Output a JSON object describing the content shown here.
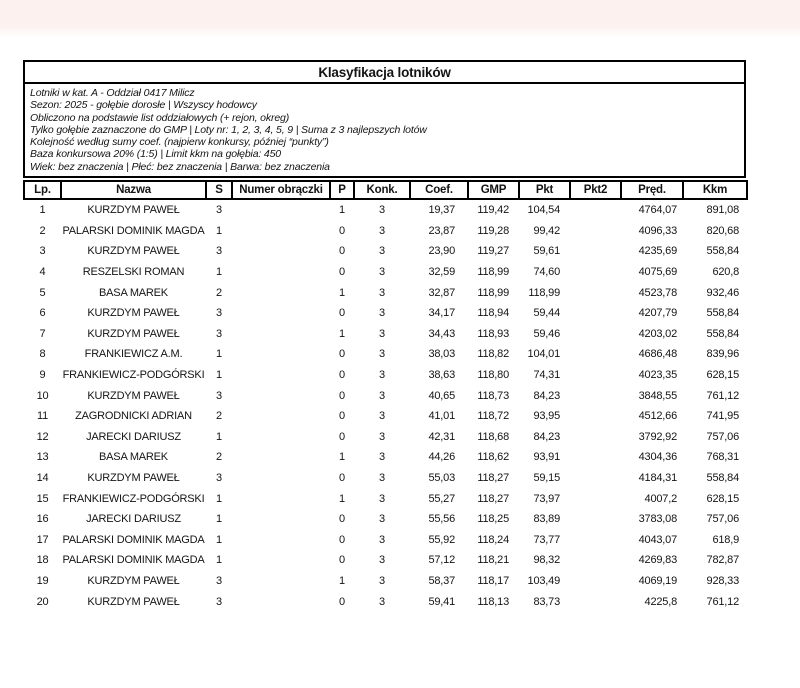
{
  "page": {
    "top_band_color": "#fcf1ee",
    "background_color": "#ffffff",
    "border_color": "#000000"
  },
  "document": {
    "title": "Klasyfikacja lotników",
    "info_lines": [
      "Lotniki w kat. A - Oddział 0417 Milicz",
      "Sezon: 2025 - gołębie dorosłe  |  Wszyscy hodowcy",
      "Obliczono na podstawie list oddziałowych (+ rejon, okreg)",
      "Tylko gołębie zaznaczone do GMP  |  Loty nr: 1, 2, 3, 4, 5, 9  |  Suma z 3 najlepszych lotów",
      "Kolejność według sumy coef. (najpierw konkursy, później “punkty”)",
      "Baza konkursowa 20% (1:5) | Limit kkm na gołębia: 450",
      "Wiek: bez znaczenia  |  Płeć: bez znaczenia  |  Barwa: bez znaczenia"
    ],
    "table": {
      "columns": [
        {
          "key": "lp",
          "label": "Lp."
        },
        {
          "key": "nazwa",
          "label": "Nazwa"
        },
        {
          "key": "s",
          "label": "S"
        },
        {
          "key": "ring",
          "label": "Numer obrączki"
        },
        {
          "key": "p",
          "label": "P"
        },
        {
          "key": "konk",
          "label": "Konk."
        },
        {
          "key": "coef",
          "label": "Coef."
        },
        {
          "key": "gmp",
          "label": "GMP"
        },
        {
          "key": "pkt",
          "label": "Pkt"
        },
        {
          "key": "pkt2",
          "label": "Pkt2"
        },
        {
          "key": "pred",
          "label": "Pręd."
        },
        {
          "key": "kkm",
          "label": "Kkm"
        }
      ],
      "rows": [
        {
          "lp": "1",
          "nazwa": "KURZDYM PAWEŁ",
          "s": "3",
          "ring": "",
          "p": "1",
          "konk": "3",
          "coef": "19,37",
          "gmp": "119,42",
          "pkt": "104,54",
          "pkt2": "",
          "pred": "4764,07",
          "kkm": "891,08"
        },
        {
          "lp": "2",
          "nazwa": "PALARSKI DOMINIK MAGDA",
          "s": "1",
          "ring": "",
          "p": "0",
          "konk": "3",
          "coef": "23,87",
          "gmp": "119,28",
          "pkt": "99,42",
          "pkt2": "",
          "pred": "4096,33",
          "kkm": "820,68"
        },
        {
          "lp": "3",
          "nazwa": "KURZDYM PAWEŁ",
          "s": "3",
          "ring": "",
          "p": "0",
          "konk": "3",
          "coef": "23,90",
          "gmp": "119,27",
          "pkt": "59,61",
          "pkt2": "",
          "pred": "4235,69",
          "kkm": "558,84"
        },
        {
          "lp": "4",
          "nazwa": "RESZELSKI ROMAN",
          "s": "1",
          "ring": "",
          "p": "0",
          "konk": "3",
          "coef": "32,59",
          "gmp": "118,99",
          "pkt": "74,60",
          "pkt2": "",
          "pred": "4075,69",
          "kkm": "620,8"
        },
        {
          "lp": "5",
          "nazwa": "BASA MAREK",
          "s": "2",
          "ring": "",
          "p": "1",
          "konk": "3",
          "coef": "32,87",
          "gmp": "118,99",
          "pkt": "118,99",
          "pkt2": "",
          "pred": "4523,78",
          "kkm": "932,46"
        },
        {
          "lp": "6",
          "nazwa": "KURZDYM PAWEŁ",
          "s": "3",
          "ring": "",
          "p": "0",
          "konk": "3",
          "coef": "34,17",
          "gmp": "118,94",
          "pkt": "59,44",
          "pkt2": "",
          "pred": "4207,79",
          "kkm": "558,84"
        },
        {
          "lp": "7",
          "nazwa": "KURZDYM PAWEŁ",
          "s": "3",
          "ring": "",
          "p": "1",
          "konk": "3",
          "coef": "34,43",
          "gmp": "118,93",
          "pkt": "59,46",
          "pkt2": "",
          "pred": "4203,02",
          "kkm": "558,84"
        },
        {
          "lp": "8",
          "nazwa": "FRANKIEWICZ A.M.",
          "s": "1",
          "ring": "",
          "p": "0",
          "konk": "3",
          "coef": "38,03",
          "gmp": "118,82",
          "pkt": "104,01",
          "pkt2": "",
          "pred": "4686,48",
          "kkm": "839,96"
        },
        {
          "lp": "9",
          "nazwa": "FRANKIEWICZ-PODGÓRSKI",
          "s": "1",
          "ring": "",
          "p": "0",
          "konk": "3",
          "coef": "38,63",
          "gmp": "118,80",
          "pkt": "74,31",
          "pkt2": "",
          "pred": "4023,35",
          "kkm": "628,15"
        },
        {
          "lp": "10",
          "nazwa": "KURZDYM PAWEŁ",
          "s": "3",
          "ring": "",
          "p": "0",
          "konk": "3",
          "coef": "40,65",
          "gmp": "118,73",
          "pkt": "84,23",
          "pkt2": "",
          "pred": "3848,55",
          "kkm": "761,12"
        },
        {
          "lp": "11",
          "nazwa": "ZAGRODNICKI ADRIAN",
          "s": "2",
          "ring": "",
          "p": "0",
          "konk": "3",
          "coef": "41,01",
          "gmp": "118,72",
          "pkt": "93,95",
          "pkt2": "",
          "pred": "4512,66",
          "kkm": "741,95"
        },
        {
          "lp": "12",
          "nazwa": "JARECKI DARIUSZ",
          "s": "1",
          "ring": "",
          "p": "0",
          "konk": "3",
          "coef": "42,31",
          "gmp": "118,68",
          "pkt": "84,23",
          "pkt2": "",
          "pred": "3792,92",
          "kkm": "757,06"
        },
        {
          "lp": "13",
          "nazwa": "BASA MAREK",
          "s": "2",
          "ring": "",
          "p": "1",
          "konk": "3",
          "coef": "44,26",
          "gmp": "118,62",
          "pkt": "93,91",
          "pkt2": "",
          "pred": "4304,36",
          "kkm": "768,31"
        },
        {
          "lp": "14",
          "nazwa": "KURZDYM PAWEŁ",
          "s": "3",
          "ring": "",
          "p": "0",
          "konk": "3",
          "coef": "55,03",
          "gmp": "118,27",
          "pkt": "59,15",
          "pkt2": "",
          "pred": "4184,31",
          "kkm": "558,84"
        },
        {
          "lp": "15",
          "nazwa": "FRANKIEWICZ-PODGÓRSKI",
          "s": "1",
          "ring": "",
          "p": "1",
          "konk": "3",
          "coef": "55,27",
          "gmp": "118,27",
          "pkt": "73,97",
          "pkt2": "",
          "pred": "4007,2",
          "kkm": "628,15"
        },
        {
          "lp": "16",
          "nazwa": "JARECKI DARIUSZ",
          "s": "1",
          "ring": "",
          "p": "0",
          "konk": "3",
          "coef": "55,56",
          "gmp": "118,25",
          "pkt": "83,89",
          "pkt2": "",
          "pred": "3783,08",
          "kkm": "757,06"
        },
        {
          "lp": "17",
          "nazwa": "PALARSKI DOMINIK MAGDA",
          "s": "1",
          "ring": "",
          "p": "0",
          "konk": "3",
          "coef": "55,92",
          "gmp": "118,24",
          "pkt": "73,77",
          "pkt2": "",
          "pred": "4043,07",
          "kkm": "618,9"
        },
        {
          "lp": "18",
          "nazwa": "PALARSKI DOMINIK MAGDA",
          "s": "1",
          "ring": "",
          "p": "0",
          "konk": "3",
          "coef": "57,12",
          "gmp": "118,21",
          "pkt": "98,32",
          "pkt2": "",
          "pred": "4269,83",
          "kkm": "782,87"
        },
        {
          "lp": "19",
          "nazwa": "KURZDYM PAWEŁ",
          "s": "3",
          "ring": "",
          "p": "1",
          "konk": "3",
          "coef": "58,37",
          "gmp": "118,17",
          "pkt": "103,49",
          "pkt2": "",
          "pred": "4069,19",
          "kkm": "928,33"
        },
        {
          "lp": "20",
          "nazwa": "KURZDYM PAWEŁ",
          "s": "3",
          "ring": "",
          "p": "0",
          "konk": "3",
          "coef": "59,41",
          "gmp": "118,13",
          "pkt": "83,73",
          "pkt2": "",
          "pred": "4225,8",
          "kkm": "761,12"
        }
      ]
    }
  }
}
